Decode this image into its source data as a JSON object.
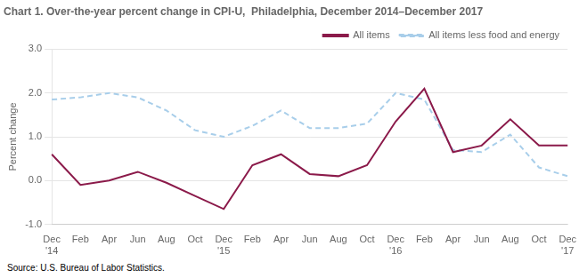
{
  "chart_data": {
    "type": "line",
    "title": "Chart 1. Over-the-year percent change in CPI-U,  Philadelphia, December 2014–December 2017",
    "ylabel": "Percent change",
    "annotations": [
      "Source: U.S. Bureau of Labor Statistics."
    ],
    "categories": [
      "Dec\n'14",
      "Feb",
      "Apr",
      "Jun",
      "Aug",
      "Oct",
      "Dec\n'15",
      "Feb",
      "Apr",
      "Jun",
      "Aug",
      "Oct",
      "Dec\n'16",
      "Feb",
      "Apr",
      "Jun",
      "Aug",
      "Oct",
      "Dec\n'17"
    ],
    "series": [
      {
        "name": "All items",
        "color": "#8B1A4A",
        "line_style": "solid",
        "values": [
          0.6,
          -0.1,
          0.0,
          0.2,
          -0.05,
          -0.35,
          -0.65,
          0.35,
          0.6,
          0.15,
          0.1,
          0.35,
          1.35,
          2.1,
          0.65,
          0.8,
          1.4,
          0.8,
          0.8
        ]
      },
      {
        "name": "All items less food and energy",
        "color": "#A8CEEA",
        "line_style": "dashed",
        "values": [
          1.85,
          1.9,
          2.0,
          1.9,
          1.6,
          1.15,
          1.0,
          1.25,
          1.6,
          1.2,
          1.2,
          1.3,
          2.0,
          1.85,
          0.7,
          0.65,
          1.05,
          0.3,
          0.1
        ]
      }
    ],
    "ylim": [
      -1.0,
      3.0
    ],
    "yticks": [
      {
        "value": -1.0,
        "label": "-1.0"
      },
      {
        "value": 0.0,
        "label": "0.0"
      },
      {
        "value": 1.0,
        "label": "1.0"
      },
      {
        "value": 2.0,
        "label": "2.0"
      },
      {
        "value": 3.0,
        "label": "3.0"
      }
    ],
    "grid": true,
    "legend": "upper right"
  }
}
